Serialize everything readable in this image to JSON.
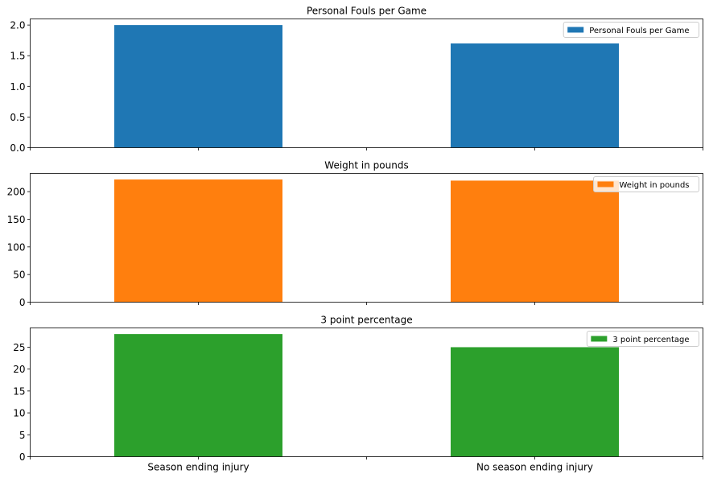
{
  "chart_data": [
    {
      "type": "bar",
      "title": "Personal Fouls per Game",
      "categories": [
        "Season ending injury",
        "No season ending injury"
      ],
      "series": [
        {
          "name": "Personal Fouls per Game",
          "values": [
            2.0,
            1.7
          ],
          "color": "#1f77b4"
        }
      ],
      "ylim": [
        0,
        2.1
      ],
      "yticks": [
        "0.0",
        "0.5",
        "1.0",
        "1.5",
        "2.0"
      ],
      "ytick_values": [
        0,
        0.5,
        1.0,
        1.5,
        2.0
      ],
      "legend": "top-right",
      "grid": false
    },
    {
      "type": "bar",
      "title": "Weight in pounds",
      "categories": [
        "Season ending injury",
        "No season ending injury"
      ],
      "series": [
        {
          "name": "Weight in pounds",
          "values": [
            222,
            220
          ],
          "color": "#ff7f0e"
        }
      ],
      "ylim": [
        0,
        233
      ],
      "yticks": [
        "0",
        "50",
        "100",
        "150",
        "200"
      ],
      "ytick_values": [
        0,
        50,
        100,
        150,
        200
      ],
      "legend": "top-right",
      "grid": false
    },
    {
      "type": "bar",
      "title": "3 point percentage",
      "categories": [
        "Season ending injury",
        "No season ending injury"
      ],
      "series": [
        {
          "name": "3 point percentage",
          "values": [
            28,
            25
          ],
          "color": "#2ca02c"
        }
      ],
      "ylim": [
        0,
        29.4
      ],
      "yticks": [
        "0",
        "5",
        "10",
        "15",
        "20",
        "25"
      ],
      "ytick_values": [
        0,
        5,
        10,
        15,
        20,
        25
      ],
      "legend": "top-right",
      "grid": false
    }
  ]
}
